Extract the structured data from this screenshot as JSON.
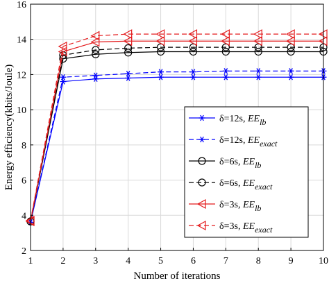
{
  "chart_data": {
    "type": "line",
    "xlabel": "Number of iterations",
    "ylabel": "Energy efficiency(kbits/Joule)",
    "xlim": [
      1,
      10
    ],
    "ylim": [
      2,
      16
    ],
    "xticks": [
      1,
      2,
      3,
      4,
      5,
      6,
      7,
      8,
      9,
      10
    ],
    "yticks": [
      2,
      4,
      6,
      8,
      10,
      12,
      14,
      16
    ],
    "grid": true,
    "legend_position": "right-middle",
    "x": [
      1,
      2,
      3,
      4,
      5,
      6,
      7,
      8,
      9,
      10
    ],
    "series": [
      {
        "name": "δ=12s, EE_lb",
        "legend_prefix": "δ=12s, ",
        "legend_ee": "EE",
        "legend_sub": "lb",
        "color": "#0000ff",
        "line": "solid",
        "marker": "asterisk",
        "values": [
          3.6,
          11.6,
          11.75,
          11.8,
          11.85,
          11.85,
          11.85,
          11.85,
          11.85,
          11.85
        ]
      },
      {
        "name": "δ=12s, EE_exact",
        "legend_prefix": "δ=12s, ",
        "legend_ee": "EE",
        "legend_sub": "exact",
        "color": "#0000ff",
        "line": "dashed",
        "marker": "asterisk",
        "values": [
          3.6,
          11.85,
          11.95,
          12.05,
          12.15,
          12.15,
          12.2,
          12.2,
          12.2,
          12.2
        ]
      },
      {
        "name": "δ=6s, EE_lb",
        "legend_prefix": "δ=6s, ",
        "legend_ee": "EE",
        "legend_sub": "lb",
        "color": "#000000",
        "line": "solid",
        "marker": "circle",
        "values": [
          3.65,
          12.9,
          13.15,
          13.25,
          13.3,
          13.3,
          13.3,
          13.3,
          13.3,
          13.3
        ]
      },
      {
        "name": "δ=6s, EE_exact",
        "legend_prefix": "δ=6s, ",
        "legend_ee": "EE",
        "legend_sub": "exact",
        "color": "#000000",
        "line": "dashed",
        "marker": "circle",
        "values": [
          3.65,
          13.1,
          13.4,
          13.5,
          13.55,
          13.55,
          13.55,
          13.55,
          13.55,
          13.55
        ]
      },
      {
        "name": "δ=3s, EE_lb",
        "legend_prefix": "δ=3s, ",
        "legend_ee": "EE",
        "legend_sub": "lb",
        "color": "#e41a1c",
        "line": "solid",
        "marker": "triangle-left",
        "values": [
          3.65,
          13.3,
          13.85,
          13.9,
          13.9,
          13.9,
          13.9,
          13.9,
          13.9,
          13.9
        ]
      },
      {
        "name": "δ=3s, EE_exact",
        "legend_prefix": "δ=3s, ",
        "legend_ee": "EE",
        "legend_sub": "exact",
        "color": "#e41a1c",
        "line": "dashed",
        "marker": "triangle-left",
        "values": [
          3.7,
          13.6,
          14.2,
          14.3,
          14.3,
          14.3,
          14.3,
          14.3,
          14.3,
          14.3
        ]
      }
    ]
  }
}
